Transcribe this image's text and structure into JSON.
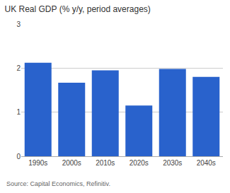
{
  "chart_data": {
    "type": "bar",
    "title": "UK Real GDP (% y/y, period averages)",
    "source": "Source: Capital Economics, Refinitiv.",
    "categories": [
      "1990s",
      "2000s",
      "2010s",
      "2020s",
      "2030s",
      "2040s"
    ],
    "values": [
      2.12,
      1.67,
      1.95,
      1.15,
      1.98,
      1.8
    ],
    "color": "#2962CC",
    "ylim": [
      0,
      3
    ],
    "yticks": [
      0,
      1,
      2,
      3
    ],
    "grid": true
  }
}
